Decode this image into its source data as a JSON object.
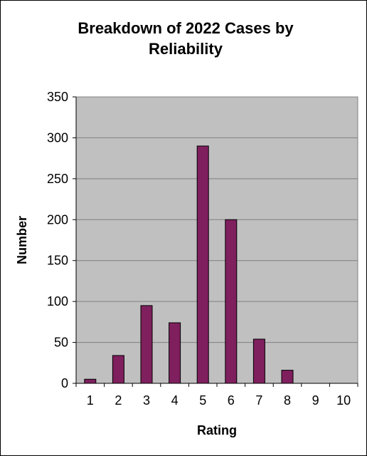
{
  "chart_data": {
    "type": "bar",
    "title_lines": [
      "Breakdown of 2022 Cases by",
      "Reliability"
    ],
    "xlabel": "Rating",
    "ylabel": "Number",
    "categories": [
      "1",
      "2",
      "3",
      "4",
      "5",
      "6",
      "7",
      "8",
      "9",
      "10"
    ],
    "values": [
      5,
      34,
      95,
      74,
      290,
      200,
      54,
      16,
      0,
      0
    ],
    "ylim": [
      0,
      350
    ],
    "yticks": [
      0,
      50,
      100,
      150,
      200,
      250,
      300,
      350
    ],
    "grid": true,
    "legend": "none",
    "colors": {
      "bar_fill": "#7F1F5E",
      "bar_stroke": "#000000",
      "plot_background": "#C0C0C0",
      "gridline": "#808080"
    }
  }
}
